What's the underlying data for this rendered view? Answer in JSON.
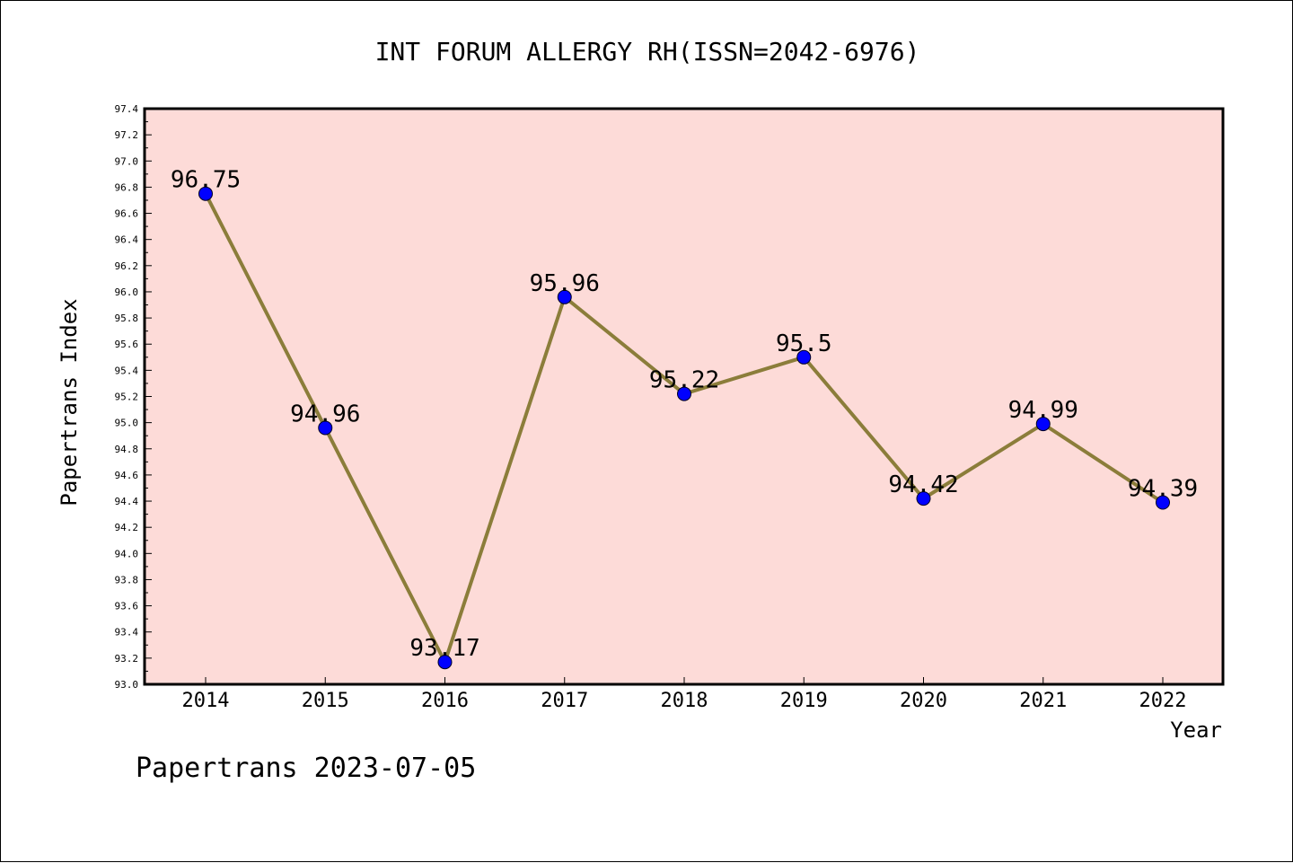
{
  "chart_data": {
    "type": "line",
    "title": "INT FORUM ALLERGY RH(ISSN=2042-6976)",
    "xlabel": "Year",
    "ylabel": "Papertrans Index",
    "categories": [
      "2014",
      "2015",
      "2016",
      "2017",
      "2018",
      "2019",
      "2020",
      "2021",
      "2022"
    ],
    "series": [
      {
        "values": [
          96.75,
          94.96,
          93.17,
          95.96,
          95.22,
          95.5,
          94.42,
          94.99,
          94.39
        ],
        "data_labels": [
          "96.75",
          "94.96",
          "93.17",
          "95.96",
          "95.22",
          "95.5",
          "94.42",
          "94.99",
          "94.39"
        ]
      }
    ],
    "ylim": [
      93.0,
      97.4
    ],
    "y_ticks": [
      "93.0",
      "93.2",
      "93.4",
      "93.6",
      "93.8",
      "94.0",
      "94.2",
      "94.4",
      "94.6",
      "94.8",
      "95.0",
      "95.2",
      "95.4",
      "95.6",
      "95.8",
      "96.0",
      "96.2",
      "96.4",
      "96.6",
      "96.8",
      "97.0",
      "97.2",
      "97.4"
    ],
    "grid": false,
    "colors": {
      "plot_background": "#fddbd8",
      "line": "#8b7d3a",
      "marker": "#0000ff"
    }
  },
  "footer": "Papertrans 2023-07-05"
}
